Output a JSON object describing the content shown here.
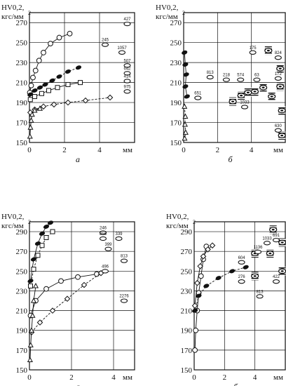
{
  "chart_data": [
    {
      "panel": "top-left",
      "type": "scatter",
      "ylabel_line1": "HV0,2,",
      "ylabel_line2": "кгс/мм",
      "ylabel_sup": "2",
      "xunit": "мм",
      "caption": "а",
      "xlim": [
        0,
        6
      ],
      "ylim": [
        150,
        280
      ],
      "xticks": [
        "0",
        "2",
        "4"
      ],
      "yticks": [
        "150",
        "170",
        "190",
        "210",
        "230",
        "250",
        "270"
      ],
      "annotations": [
        "427",
        "245",
        "1057",
        "507",
        "642",
        "414",
        "975"
      ],
      "series": [
        {
          "marker": "open-circle",
          "values": [
            [
              0.02,
              200
            ],
            [
              0.1,
              207
            ],
            [
              0.2,
              215
            ],
            [
              0.35,
              222
            ],
            [
              0.55,
              232
            ],
            [
              0.8,
              240
            ],
            [
              1.2,
              249
            ],
            [
              1.7,
              255
            ],
            [
              2.3,
              259
            ]
          ]
        },
        {
          "marker": "filled-ellipse",
          "values": [
            [
              0.05,
              198
            ],
            [
              0.3,
              202
            ],
            [
              0.6,
              205
            ],
            [
              0.9,
              208
            ],
            [
              1.3,
              212
            ],
            [
              1.7,
              216
            ],
            [
              2.2,
              221
            ],
            [
              2.8,
              225
            ]
          ]
        },
        {
          "marker": "open-square",
          "values": [
            [
              0.05,
              193
            ],
            [
              0.3,
              196
            ],
            [
              0.7,
              199
            ],
            [
              1.1,
              202
            ],
            [
              1.6,
              205
            ],
            [
              2.2,
              208
            ],
            [
              2.9,
              210
            ]
          ]
        },
        {
          "marker": "open-diamond",
          "values": [
            [
              0.05,
              180
            ],
            [
              0.3,
              183
            ],
            [
              0.8,
              186
            ],
            [
              1.4,
              188
            ],
            [
              2.2,
              190
            ],
            [
              3.2,
              192
            ],
            [
              4.6,
              195
            ]
          ]
        },
        {
          "marker": "open-triangle",
          "values": [
            [
              0.03,
              156
            ],
            [
              0.06,
              165
            ],
            [
              0.1,
              172
            ],
            [
              0.15,
              178
            ],
            [
              0.3,
              182
            ],
            [
              0.6,
              184
            ]
          ]
        }
      ]
    },
    {
      "panel": "top-right",
      "type": "scatter",
      "ylabel_line1": "HV0,2,",
      "ylabel_line2": "кгс/мм",
      "ylabel_sup": "2",
      "xunit": "мм",
      "caption": "б",
      "xlim": [
        0,
        6
      ],
      "ylim": [
        150,
        280
      ],
      "xticks": [
        "0",
        "2",
        "4"
      ],
      "yticks": [
        "150",
        "170",
        "190",
        "210",
        "230",
        "250",
        "270"
      ],
      "annotations": [
        "175",
        "824",
        "813",
        "218",
        "574",
        "63",
        "172",
        "651",
        "1033",
        "630"
      ],
      "series": [
        {
          "marker": "filled-ellipse",
          "values": [
            [
              0.05,
              240
            ],
            [
              0.1,
              228
            ],
            [
              0.15,
              218
            ],
            [
              0.1,
              206
            ],
            [
              0.2,
              196
            ]
          ]
        },
        {
          "marker": "open-triangle",
          "values": [
            [
              0.05,
              186
            ],
            [
              0.1,
              176
            ],
            [
              0.08,
              168
            ],
            [
              0.12,
              160
            ],
            [
              0.06,
              154
            ]
          ]
        },
        {
          "marker": "striped-ellipse",
          "values": [
            [
              2.9,
              191
            ],
            [
              3.4,
              197
            ],
            [
              3.8,
              200
            ],
            [
              4.2,
              201
            ],
            [
              4.7,
              205
            ],
            [
              5.7,
              206
            ],
            [
              5.0,
              242
            ],
            [
              5.7,
              224
            ],
            [
              5.2,
              196
            ],
            [
              5.8,
              182
            ],
            [
              5.8,
              157
            ]
          ]
        }
      ]
    },
    {
      "panel": "bottom-left",
      "type": "scatter",
      "ylabel_line1": "HV0,2,",
      "ylabel_line2": "кгс/мм",
      "ylabel_sup": "2",
      "xunit": "мм",
      "caption": "а",
      "xlim": [
        0,
        5
      ],
      "ylim": [
        150,
        300
      ],
      "xticks": [
        "0",
        "2",
        "4"
      ],
      "yticks": [
        "150",
        "170",
        "190",
        "210",
        "230",
        "250",
        "270",
        "290"
      ],
      "annotations": [
        "246",
        "856",
        "339",
        "399",
        "813",
        "496",
        "2276"
      ],
      "series": [
        {
          "marker": "filled-ellipse",
          "values": [
            [
              0.05,
              240
            ],
            [
              0.2,
              262
            ],
            [
              0.4,
              278
            ],
            [
              0.6,
              288
            ],
            [
              0.8,
              295
            ],
            [
              1.0,
              299
            ]
          ]
        },
        {
          "marker": "open-square",
          "values": [
            [
              0.05,
              235
            ],
            [
              0.2,
              252
            ],
            [
              0.4,
              266
            ],
            [
              0.6,
              276
            ],
            [
              0.8,
              284
            ],
            [
              1.1,
              290
            ]
          ]
        },
        {
          "marker": "open-circle",
          "values": [
            [
              0.05,
              205
            ],
            [
              0.3,
              220
            ],
            [
              0.8,
              232
            ],
            [
              1.5,
              240
            ],
            [
              2.3,
              244
            ],
            [
              3.2,
              247
            ]
          ]
        },
        {
          "marker": "open-diamond",
          "values": [
            [
              0.1,
              188
            ],
            [
              0.5,
              198
            ],
            [
              1.1,
              210
            ],
            [
              1.8,
              222
            ],
            [
              2.6,
              236
            ],
            [
              3.4,
              248
            ]
          ]
        },
        {
          "marker": "open-triangle",
          "values": [
            [
              0.03,
              160
            ],
            [
              0.06,
              175
            ],
            [
              0.1,
              190
            ],
            [
              0.15,
              205
            ],
            [
              0.2,
              220
            ],
            [
              0.3,
              235
            ]
          ]
        }
      ]
    },
    {
      "panel": "bottom-right",
      "type": "scatter",
      "ylabel_line1": "HV0,2,",
      "ylabel_line2": "кгс/мм",
      "ylabel_sup": "2",
      "xunit": "мм",
      "caption": "б",
      "xlim": [
        0,
        6
      ],
      "ylim": [
        150,
        300
      ],
      "xticks": [
        "0",
        "2",
        "4"
      ],
      "yticks": [
        "150",
        "170",
        "190",
        "210",
        "230",
        "250",
        "270",
        "290"
      ],
      "annotations": [
        "691",
        "1033",
        "1136",
        "604",
        "276",
        "422",
        "813"
      ],
      "series": [
        {
          "marker": "open-circle",
          "values": [
            [
              0.05,
              170
            ],
            [
              0.1,
              190
            ],
            [
              0.2,
              210
            ],
            [
              0.3,
              228
            ],
            [
              0.45,
              245
            ],
            [
              0.6,
              262
            ],
            [
              0.8,
              275
            ]
          ]
        },
        {
          "marker": "filled-ellipse",
          "values": [
            [
              0.05,
              210
            ],
            [
              0.3,
              225
            ],
            [
              0.8,
              235
            ],
            [
              1.6,
              243
            ],
            [
              2.5,
              250
            ],
            [
              3.4,
              254
            ]
          ]
        },
        {
          "marker": "open-diamond",
          "values": [
            [
              0.05,
              215
            ],
            [
              0.2,
              238
            ],
            [
              0.4,
              255
            ],
            [
              0.6,
              265
            ],
            [
              0.9,
              272
            ],
            [
              1.2,
              276
            ]
          ]
        },
        {
          "marker": "striped-ellipse",
          "values": [
            [
              4.0,
              268
            ],
            [
              4.0,
              245
            ],
            [
              5.2,
              292
            ],
            [
              5.0,
              268
            ],
            [
              5.8,
              279
            ],
            [
              5.8,
              250
            ]
          ]
        }
      ]
    }
  ]
}
